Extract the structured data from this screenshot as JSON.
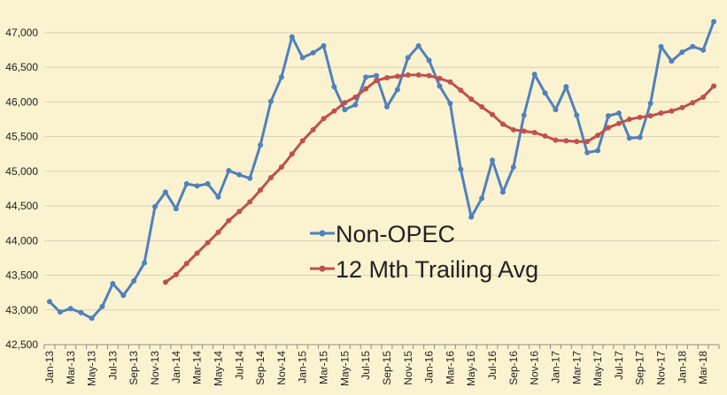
{
  "chart_data": {
    "type": "line",
    "title": "",
    "xlabel": "",
    "ylabel": "",
    "ylim": [
      42500,
      47000
    ],
    "y_ticks": [
      42500,
      43000,
      43500,
      44000,
      44500,
      45000,
      45500,
      46000,
      46500,
      47000
    ],
    "y_tick_labels": [
      "42,500",
      "43,000",
      "43,500",
      "44,000",
      "44,500",
      "45,000",
      "45,500",
      "46,000",
      "46,500",
      "47,000"
    ],
    "grid": "horizontal",
    "legend_position": "center",
    "x": [
      "Jan-13",
      "Feb-13",
      "Mar-13",
      "Apr-13",
      "May-13",
      "Jun-13",
      "Jul-13",
      "Aug-13",
      "Sep-13",
      "Oct-13",
      "Nov-13",
      "Dec-13",
      "Jan-14",
      "Feb-14",
      "Mar-14",
      "Apr-14",
      "May-14",
      "Jun-14",
      "Jul-14",
      "Aug-14",
      "Sep-14",
      "Oct-14",
      "Nov-14",
      "Dec-14",
      "Jan-15",
      "Feb-15",
      "Mar-15",
      "Apr-15",
      "May-15",
      "Jun-15",
      "Jul-15",
      "Aug-15",
      "Sep-15",
      "Oct-15",
      "Nov-15",
      "Dec-15",
      "Jan-16",
      "Feb-16",
      "Mar-16",
      "Apr-16",
      "May-16",
      "Jun-16",
      "Jul-16",
      "Aug-16",
      "Sep-16",
      "Oct-16",
      "Nov-16",
      "Dec-16",
      "Jan-17",
      "Feb-17",
      "Mar-17",
      "Apr-17",
      "May-17",
      "Jun-17",
      "Jul-17",
      "Aug-17",
      "Sep-17",
      "Oct-17",
      "Nov-17",
      "Dec-17",
      "Jan-18",
      "Feb-18",
      "Mar-18",
      "Apr-18"
    ],
    "x_tick_labels": [
      "Jan-13",
      "Mar-13",
      "May-13",
      "Jul-13",
      "Sep-13",
      "Nov-13",
      "Jan-14",
      "Mar-14",
      "May-14",
      "Jul-14",
      "Sep-14",
      "Nov-14",
      "Jan-15",
      "Mar-15",
      "May-15",
      "Jul-15",
      "Sep-15",
      "Nov-15",
      "Jan-16",
      "Mar-16",
      "May-16",
      "Jul-16",
      "Sep-16",
      "Nov-16",
      "Jan-17",
      "Mar-17",
      "May-17",
      "Jul-17",
      "Sep-17",
      "Nov-17",
      "Jan-18",
      "Mar-18"
    ],
    "series": [
      {
        "name": "Non-OPEC",
        "color": "#4f81bd",
        "values": [
          43120,
          42970,
          43020,
          42960,
          42880,
          43050,
          43380,
          43210,
          43420,
          43680,
          44490,
          44700,
          44460,
          44820,
          44790,
          44820,
          44630,
          45010,
          44950,
          44900,
          45380,
          46010,
          46360,
          46940,
          46640,
          46710,
          46810,
          46220,
          45890,
          45960,
          46360,
          46380,
          45930,
          46180,
          46640,
          46810,
          46600,
          46230,
          45980,
          45030,
          44340,
          44610,
          45160,
          44700,
          45060,
          45810,
          46400,
          46130,
          45890,
          46220,
          45810,
          45270,
          45300,
          45800,
          45840,
          45480,
          45490,
          45980,
          46800,
          46590,
          46720,
          46800,
          46750,
          47160
        ]
      },
      {
        "name": "12 Mth Trailing Avg",
        "color": "#c0504d",
        "values": [
          null,
          null,
          null,
          null,
          null,
          null,
          null,
          null,
          null,
          null,
          null,
          43400,
          43510,
          43670,
          43820,
          43970,
          44120,
          44290,
          44420,
          44560,
          44730,
          44910,
          45060,
          45250,
          45440,
          45600,
          45760,
          45870,
          45990,
          46070,
          46190,
          46310,
          46350,
          46370,
          46390,
          46390,
          46380,
          46340,
          46290,
          46170,
          46040,
          45930,
          45820,
          45680,
          45600,
          45580,
          45560,
          45510,
          45450,
          45440,
          45430,
          45430,
          45520,
          45630,
          45690,
          45750,
          45780,
          45800,
          45840,
          45870,
          45920,
          45990,
          46070,
          46230
        ]
      }
    ]
  }
}
